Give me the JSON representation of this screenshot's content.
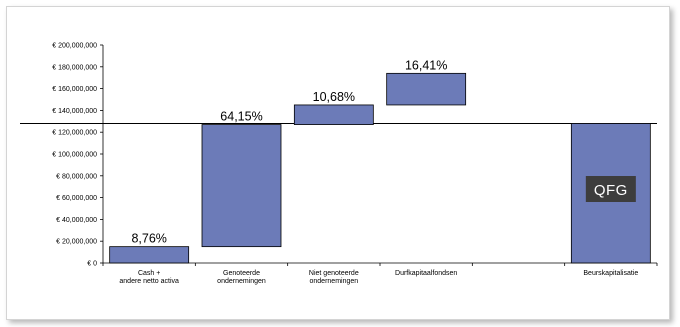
{
  "chart_data": {
    "type": "waterfall",
    "y_tick_labels": [
      "€ 0",
      "€ 20,000,000",
      "€ 40,000,000",
      "€ 60,000,000",
      "€ 80,000,000",
      "€ 100,000,000",
      "€ 120,000,000",
      "€ 140,000,000",
      "€ 160,000,000",
      "€ 180,000,000",
      "€ 200,000,000"
    ],
    "ylim": [
      0,
      200000000
    ],
    "reference_line": 128000000,
    "bars": [
      {
        "category": [
          "Cash +",
          "andere netto activa"
        ],
        "start": 0,
        "end": 15000000,
        "label": "8,76%"
      },
      {
        "category": [
          "Genoteerde",
          "ondernemingen"
        ],
        "start": 15000000,
        "end": 127000000,
        "label": "64,15%"
      },
      {
        "category": [
          "Niet genoteerde",
          "ondernemingen"
        ],
        "start": 127000000,
        "end": 145000000,
        "label": "10,68%"
      },
      {
        "category": [
          "Durfkapitaalfondsen"
        ],
        "start": 145000000,
        "end": 174000000,
        "label": "16,41%"
      },
      {
        "category": [
          ""
        ],
        "start": 0,
        "end": 0,
        "label": ""
      },
      {
        "category": [
          "Beurskapitalisatie"
        ],
        "start": 0,
        "end": 128000000,
        "label": ""
      }
    ],
    "bar_color": "#6c7bb8",
    "logo_text": "QFG"
  }
}
